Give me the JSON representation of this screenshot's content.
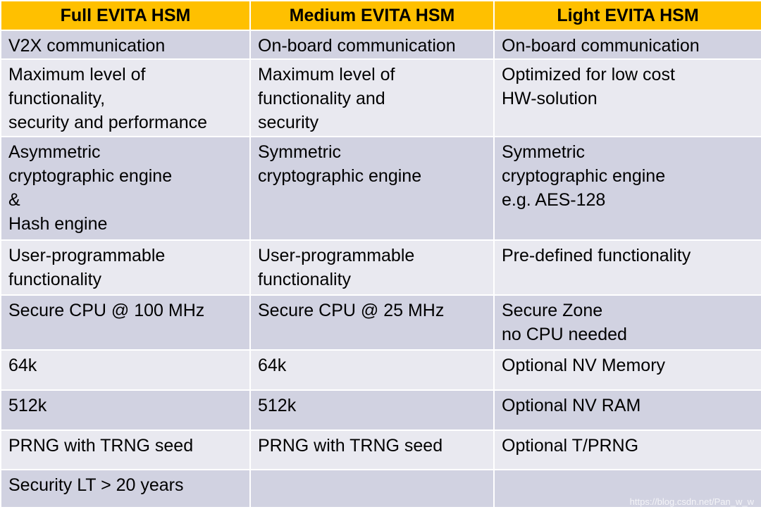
{
  "table": {
    "headers": [
      "Full EVITA HSM",
      "Medium EVITA HSM",
      "Light EVITA HSM"
    ],
    "rows": [
      [
        "V2X communication",
        "On-board communication",
        "On-board communication"
      ],
      [
        "Maximum level of\nfunctionality,\nsecurity and performance",
        "Maximum level of\nfunctionality and\nsecurity",
        "Optimized for low cost\nHW-solution"
      ],
      [
        "Asymmetric\ncryptographic engine\n&\nHash engine",
        "Symmetric\ncryptographic engine",
        "Symmetric\ncryptographic engine\ne.g. AES-128"
      ],
      [
        "User-programmable\nfunctionality",
        "User-programmable\nfunctionality",
        "Pre-defined functionality"
      ],
      [
        "Secure CPU @ 100 MHz",
        "Secure CPU @ 25 MHz",
        "Secure Zone\nno CPU needed"
      ],
      [
        "64k",
        "64k",
        "Optional NV Memory"
      ],
      [
        "512k",
        "512k",
        "Optional NV RAM"
      ],
      [
        "PRNG with TRNG seed",
        "PRNG with TRNG seed",
        "Optional T/PRNG"
      ],
      [
        "Security LT > 20 years",
        "",
        ""
      ]
    ]
  },
  "watermark": "https://blog.csdn.net/Pan_w_w",
  "colors": {
    "header_bg": "#ffc000",
    "row_dark": "#d1d2e1",
    "row_light": "#e9e9f0"
  }
}
